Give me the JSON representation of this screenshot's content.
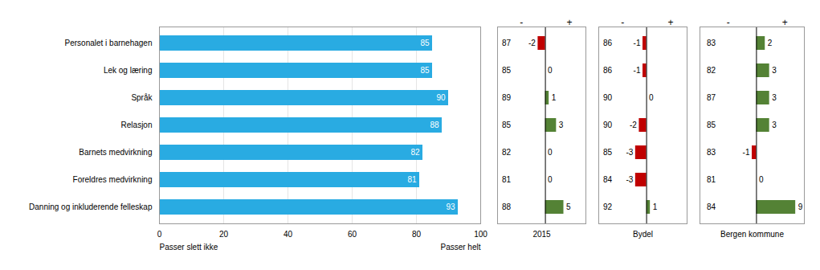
{
  "chart_data": [
    {
      "type": "bar",
      "orientation": "horizontal",
      "categories": [
        "Personalet i barnehagen",
        "Lek og læring",
        "Språk",
        "Relasjon",
        "Barnets medvirkning",
        "Foreldres medvirkning",
        "Danning og inkluderende felleskap"
      ],
      "values": [
        85,
        85,
        90,
        88,
        82,
        81,
        93
      ],
      "color": "#29abe2",
      "xlim": [
        0,
        100
      ],
      "xticks": [
        0,
        20,
        40,
        60,
        80,
        100
      ],
      "grid": true,
      "data_labels": true,
      "annotations": [
        {
          "text": "Passer slett ikke",
          "x": 0
        },
        {
          "text": "Passer helt",
          "x": 100
        }
      ]
    },
    {
      "type": "bar",
      "orientation": "horizontal",
      "xlabel": "2015",
      "categories": [
        "Personalet i barnehagen",
        "Lek og læring",
        "Språk",
        "Relasjon",
        "Barnets medvirkning",
        "Foreldres medvirkning",
        "Danning og inkluderende felleskap"
      ],
      "values": [
        -2,
        0,
        1,
        3,
        0,
        0,
        5
      ],
      "scores": [
        87,
        85,
        89,
        85,
        82,
        81,
        88
      ],
      "colors": [
        "#c00000",
        "#548235",
        "#548235",
        "#548235",
        "#548235",
        "#548235",
        "#548235"
      ],
      "xlim": [
        -13,
        11
      ],
      "tick_labels": false,
      "data_labels": true,
      "annotations": [
        {
          "text": "-",
          "x": -6.5
        },
        {
          "text": "+",
          "x": 6.5
        }
      ]
    },
    {
      "type": "bar",
      "orientation": "horizontal",
      "xlabel": "Bydel",
      "categories": [
        "Personalet i barnehagen",
        "Lek og læring",
        "Språk",
        "Relasjon",
        "Barnets medvirkning",
        "Foreldres medvirkning",
        "Danning og inkluderende felleskap"
      ],
      "values": [
        -1,
        -1,
        0,
        -2,
        -3,
        -3,
        1
      ],
      "scores": [
        86,
        86,
        90,
        90,
        85,
        84,
        92
      ],
      "colors": [
        "#c00000",
        "#c00000",
        "#548235",
        "#c00000",
        "#c00000",
        "#c00000",
        "#548235"
      ],
      "xlim": [
        -13,
        11
      ],
      "tick_labels": false,
      "data_labels": true,
      "annotations": [
        {
          "text": "-",
          "x": -6.5
        },
        {
          "text": "+",
          "x": 6.5
        }
      ]
    },
    {
      "type": "bar",
      "orientation": "horizontal",
      "xlabel": "Bergen kommune",
      "categories": [
        "Personalet i barnehagen",
        "Lek og læring",
        "Språk",
        "Relasjon",
        "Barnets medvirkning",
        "Foreldres medvirkning",
        "Danning og inkluderende felleskap"
      ],
      "values": [
        2,
        3,
        3,
        3,
        -1,
        0,
        9
      ],
      "scores": [
        83,
        82,
        87,
        85,
        83,
        81,
        84
      ],
      "colors": [
        "#548235",
        "#548235",
        "#548235",
        "#548235",
        "#c00000",
        "#548235",
        "#548235"
      ],
      "xlim": [
        -13,
        11
      ],
      "tick_labels": false,
      "data_labels": true,
      "annotations": [
        {
          "text": "-",
          "x": -6.5
        },
        {
          "text": "+",
          "x": 6.5
        }
      ]
    }
  ]
}
